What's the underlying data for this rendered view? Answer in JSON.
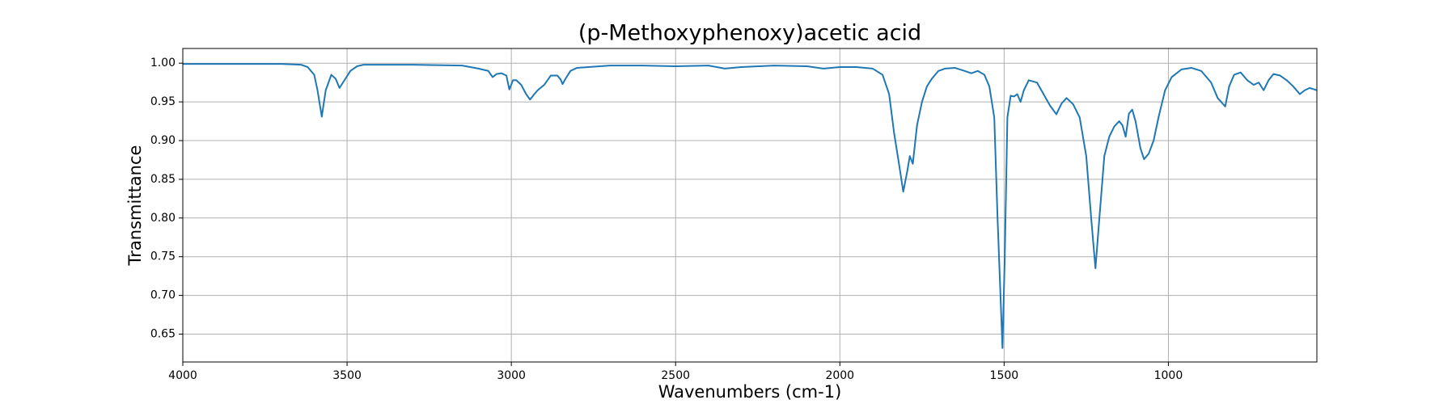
{
  "chart_data": {
    "type": "line",
    "title": "(p-Methoxyphenoxy)acetic acid",
    "x_label": "Wavenumbers (cm-1)",
    "y_label": "Transmittance",
    "x": [
      4000,
      3900,
      3800,
      3700,
      3640,
      3620,
      3600,
      3590,
      3577,
      3565,
      3548,
      3535,
      3523,
      3505,
      3490,
      3470,
      3450,
      3300,
      3150,
      3100,
      3070,
      3057,
      3045,
      3030,
      3015,
      3006,
      2995,
      2985,
      2970,
      2955,
      2943,
      2930,
      2920,
      2900,
      2880,
      2860,
      2850,
      2844,
      2835,
      2820,
      2800,
      2700,
      2600,
      2500,
      2400,
      2350,
      2300,
      2200,
      2100,
      2050,
      2000,
      1950,
      1900,
      1870,
      1850,
      1835,
      1820,
      1807,
      1795,
      1787,
      1778,
      1765,
      1750,
      1735,
      1720,
      1700,
      1680,
      1650,
      1620,
      1600,
      1580,
      1560,
      1545,
      1530,
      1520,
      1505,
      1498,
      1490,
      1480,
      1470,
      1460,
      1450,
      1440,
      1425,
      1400,
      1380,
      1360,
      1341,
      1325,
      1310,
      1290,
      1270,
      1250,
      1235,
      1222,
      1210,
      1195,
      1180,
      1165,
      1150,
      1140,
      1130,
      1120,
      1110,
      1100,
      1085,
      1074,
      1060,
      1045,
      1030,
      1010,
      990,
      960,
      930,
      900,
      870,
      850,
      827,
      815,
      800,
      780,
      760,
      740,
      725,
      710,
      695,
      680,
      660,
      640,
      620,
      600,
      585,
      570,
      548
    ],
    "series": [
      {
        "name": "Transmittance",
        "color": "#1f77b4",
        "values": [
          0.999,
          0.999,
          0.999,
          0.999,
          0.998,
          0.995,
          0.985,
          0.965,
          0.931,
          0.965,
          0.985,
          0.98,
          0.968,
          0.98,
          0.99,
          0.996,
          0.998,
          0.998,
          0.997,
          0.993,
          0.99,
          0.982,
          0.986,
          0.987,
          0.984,
          0.966,
          0.978,
          0.978,
          0.972,
          0.96,
          0.953,
          0.96,
          0.965,
          0.972,
          0.984,
          0.984,
          0.979,
          0.973,
          0.98,
          0.99,
          0.994,
          0.997,
          0.997,
          0.996,
          0.997,
          0.993,
          0.995,
          0.997,
          0.996,
          0.993,
          0.995,
          0.995,
          0.993,
          0.985,
          0.96,
          0.91,
          0.87,
          0.834,
          0.86,
          0.88,
          0.87,
          0.92,
          0.95,
          0.97,
          0.98,
          0.99,
          0.993,
          0.994,
          0.99,
          0.987,
          0.99,
          0.985,
          0.97,
          0.93,
          0.8,
          0.632,
          0.75,
          0.93,
          0.958,
          0.957,
          0.96,
          0.95,
          0.965,
          0.978,
          0.975,
          0.96,
          0.945,
          0.934,
          0.948,
          0.955,
          0.947,
          0.93,
          0.88,
          0.8,
          0.735,
          0.8,
          0.88,
          0.905,
          0.918,
          0.925,
          0.92,
          0.905,
          0.935,
          0.94,
          0.925,
          0.89,
          0.876,
          0.883,
          0.9,
          0.93,
          0.965,
          0.982,
          0.992,
          0.994,
          0.99,
          0.975,
          0.955,
          0.944,
          0.97,
          0.985,
          0.988,
          0.978,
          0.972,
          0.975,
          0.965,
          0.978,
          0.986,
          0.984,
          0.978,
          0.97,
          0.96,
          0.965,
          0.968,
          0.965
        ]
      }
    ],
    "xlim": [
      4000,
      548
    ],
    "ylim": [
      0.614,
      1.019
    ],
    "xticks": [
      4000,
      3500,
      3000,
      2500,
      2000,
      1500,
      1000
    ],
    "yticks": [
      0.65,
      {
        "value": 0.7,
        "label": "0.70"
      },
      0.75,
      {
        "value": 0.8,
        "label": "0.80"
      },
      0.85,
      {
        "value": 0.9,
        "label": "0.90"
      },
      0.95,
      {
        "value": 1,
        "label": "1.00"
      }
    ],
    "grid": true
  }
}
